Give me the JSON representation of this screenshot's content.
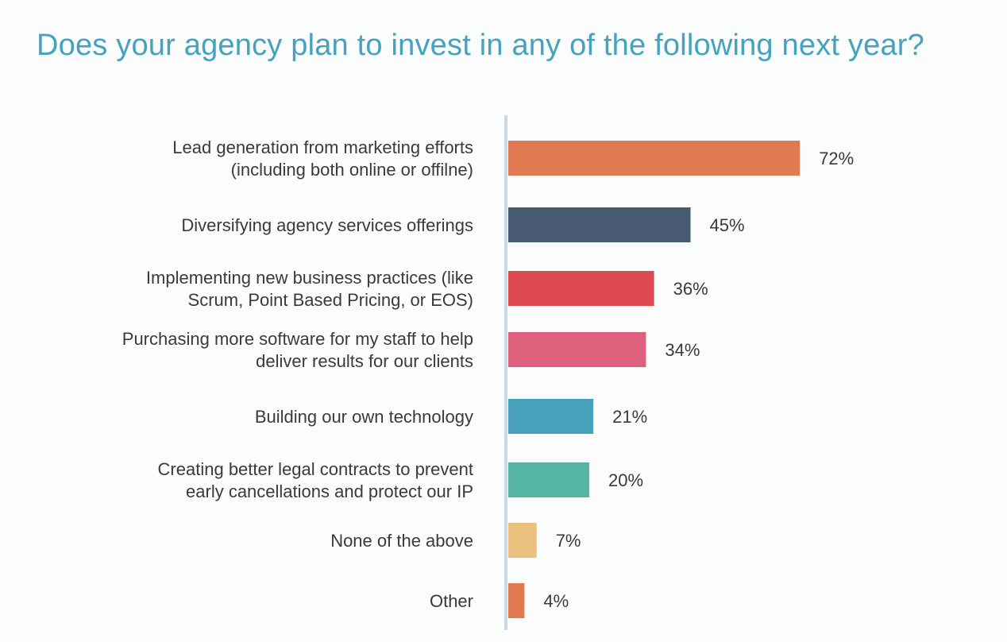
{
  "chart_data": {
    "type": "bar",
    "orientation": "horizontal",
    "title": "Does your agency plan to invest in any of the following next year?",
    "categories": [
      [
        "Lead generation from marketing efforts",
        "(including both online or offilne)"
      ],
      [
        "Diversifying agency services offerings"
      ],
      [
        "Implementing new business practices (like",
        "Scrum, Point Based Pricing, or EOS)"
      ],
      [
        "Purchasing more software for my staff to help",
        "deliver results for our clients"
      ],
      [
        "Building our own technology"
      ],
      [
        "Creating better legal contracts to prevent",
        "early cancellations and protect our IP"
      ],
      [
        "None of the above"
      ],
      [
        "Other"
      ]
    ],
    "values": [
      72,
      45,
      36,
      34,
      21,
      20,
      7,
      4
    ],
    "value_labels": [
      "72%",
      "45%",
      "36%",
      "34%",
      "21%",
      "20%",
      "7%",
      "4%"
    ],
    "colors": [
      "#e07a53",
      "#485a72",
      "#dc4950",
      "#df607d",
      "#47a1bc",
      "#56b5a2",
      "#ebbf7d",
      "#e07a53"
    ],
    "axis_color": "#cdd9e0",
    "title_color": "#45a2c0",
    "xlim": [
      0,
      100
    ],
    "grid": false,
    "legend": "none"
  }
}
